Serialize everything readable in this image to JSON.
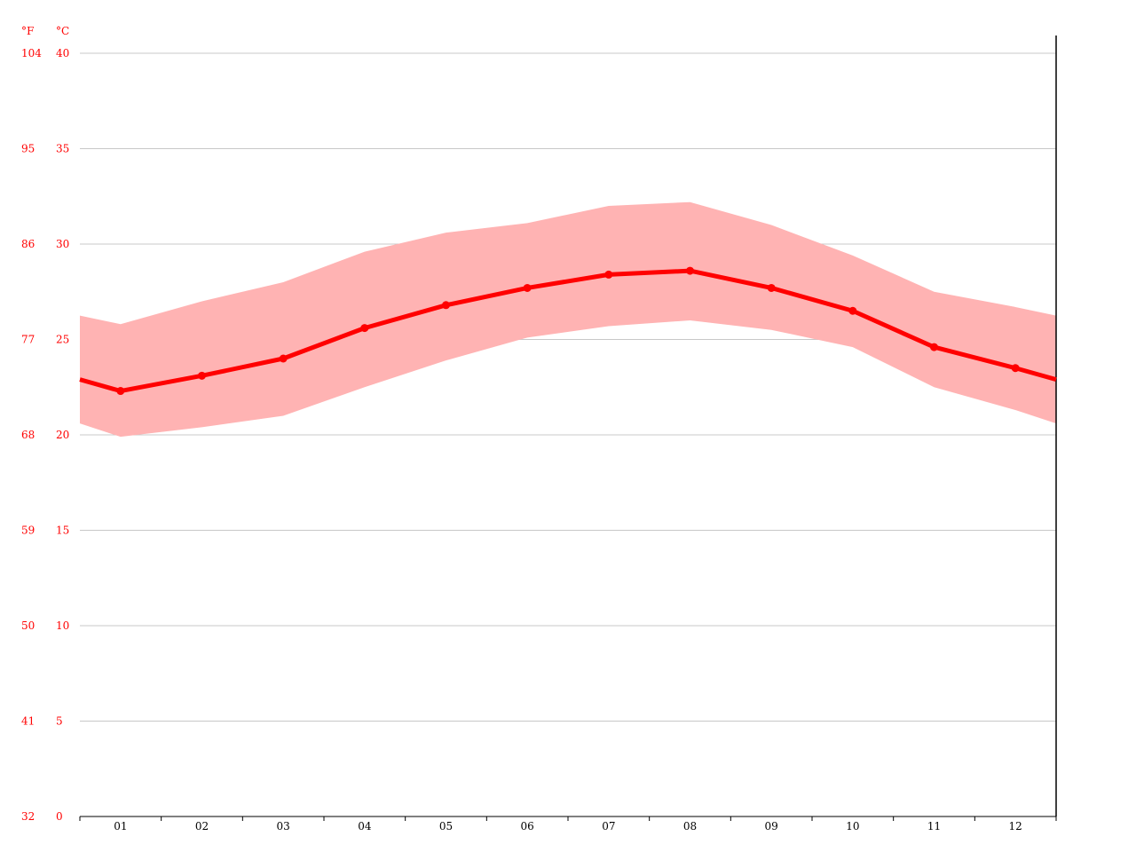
{
  "chart_data": {
    "type": "line",
    "units": {
      "fahrenheit": "°F",
      "celsius": "°C"
    },
    "categories": [
      "01",
      "02",
      "03",
      "04",
      "05",
      "06",
      "07",
      "08",
      "09",
      "10",
      "11",
      "12"
    ],
    "series": [
      {
        "values": [
          22.3,
          23.1,
          24.0,
          25.6,
          26.8,
          27.7,
          28.4,
          28.6,
          27.7,
          26.5,
          24.6,
          23.5
        ]
      }
    ],
    "range_band": {
      "upper": [
        25.8,
        27.0,
        28.0,
        29.6,
        30.6,
        31.1,
        32.0,
        32.2,
        31.0,
        29.4,
        27.5,
        26.7
      ],
      "lower": [
        19.9,
        20.4,
        21.0,
        22.5,
        23.9,
        25.1,
        25.7,
        26.0,
        25.5,
        24.6,
        22.5,
        21.3
      ]
    },
    "y_ticks_celsius": [
      "0",
      "5",
      "10",
      "15",
      "20",
      "25",
      "30",
      "35",
      "40"
    ],
    "y_ticks_fahrenheit": [
      "32",
      "41",
      "50",
      "59",
      "68",
      "77",
      "86",
      "95",
      "104"
    ],
    "ylim": [
      0,
      40
    ],
    "grid": true,
    "colors": {
      "line": "#ff0000",
      "band": "#ffb3b3",
      "grid": "#c8c8c8",
      "axis": "#000000",
      "tick_text_y": "#ff0000"
    }
  }
}
